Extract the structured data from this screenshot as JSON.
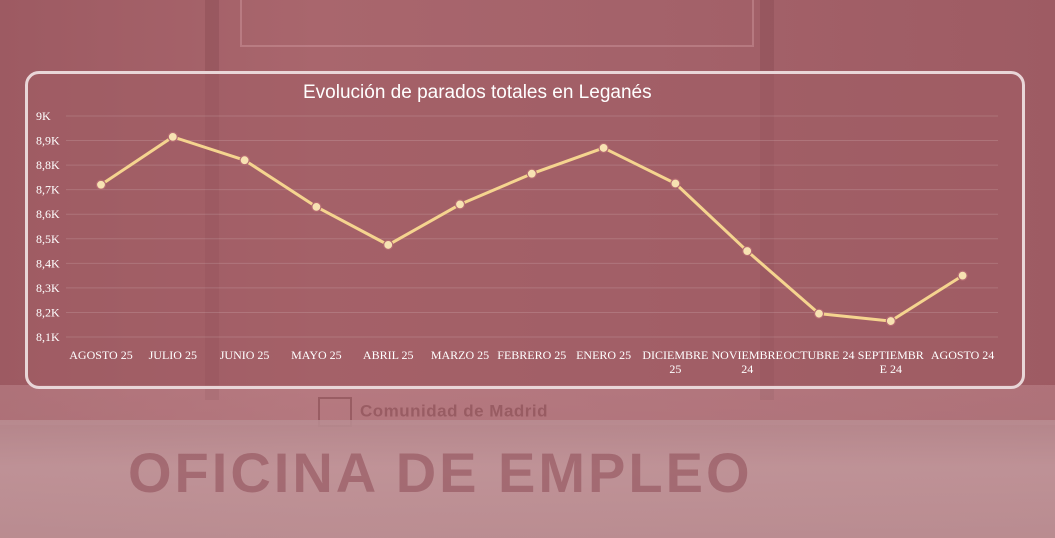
{
  "background": {
    "brand_text": "Comunidad de Madrid",
    "office_text": "OFICINA DE EMPLEO"
  },
  "chart_data": {
    "type": "line",
    "title": "Evolución de parados totales en Leganés",
    "categories": [
      "AGOSTO 25",
      "JULIO 25",
      "JUNIO 25",
      "MAYO 25",
      "ABRIL 25",
      "MARZO 25",
      "FEBRERO 25",
      "ENERO 25",
      "DICIEMBRE 25",
      "NOVIEMBRE 24",
      "OCTUBRE 24",
      "SEPTIEMBRE 24",
      "AGOSTO 24"
    ],
    "category_label_lines": [
      [
        "AGOSTO 25"
      ],
      [
        "JULIO 25"
      ],
      [
        "JUNIO 25"
      ],
      [
        "MAYO 25"
      ],
      [
        "ABRIL 25"
      ],
      [
        "MARZO 25"
      ],
      [
        "FEBRERO 25"
      ],
      [
        "ENERO 25"
      ],
      [
        "DICIEMBRE",
        "25"
      ],
      [
        "NOVIEMBRE",
        "24"
      ],
      [
        "OCTUBRE 24"
      ],
      [
        "SEPTIEMBR",
        "E 24"
      ],
      [
        "AGOSTO 24"
      ]
    ],
    "series": [
      {
        "values": [
          8720,
          8915,
          8820,
          8630,
          8475,
          8640,
          8765,
          8870,
          8725,
          8450,
          8195,
          8165,
          8350
        ]
      }
    ],
    "ylim": [
      8100,
      9000
    ],
    "yticks": [
      8100,
      8200,
      8300,
      8400,
      8500,
      8600,
      8700,
      8800,
      8900,
      9000
    ],
    "ytick_labels": [
      "8,1K",
      "8,2K",
      "8,3K",
      "8,4K",
      "8,5K",
      "8,6K",
      "8,7K",
      "8,8K",
      "8,9K",
      "9K"
    ],
    "xlabel": "",
    "ylabel": "",
    "grid": true,
    "colors": {
      "line": "#f5d48f",
      "marker_fill": "#f7e2b2",
      "marker_stroke": "#b56b72",
      "grid": "rgba(255,255,255,0.14)",
      "tick_text": "#ffffff"
    }
  }
}
